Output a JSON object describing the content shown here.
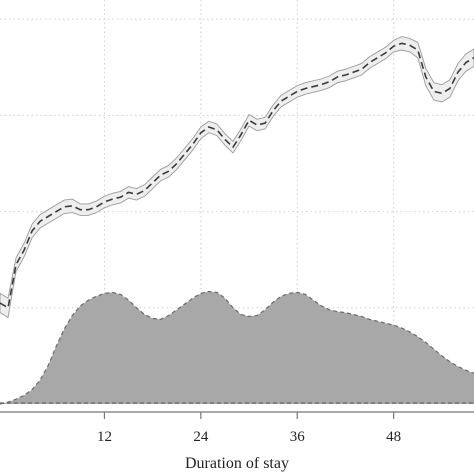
{
  "chart_data": {
    "type": "line",
    "title": "",
    "xlabel": "Duration of stay",
    "ylabel": "",
    "xlim": [
      -1,
      58
    ],
    "ylim": [
      0,
      4.2
    ],
    "grid": true,
    "x_ticks": [
      12,
      24,
      36,
      48
    ],
    "series": [
      {
        "style": "dashed line with shaded confidence band",
        "x": [
          -1,
          0,
          1,
          2,
          3,
          4,
          5,
          6,
          7,
          8,
          9,
          10,
          11,
          12,
          13,
          14,
          15,
          16,
          17,
          18,
          19,
          20,
          21,
          22,
          23,
          24,
          25,
          26,
          27,
          28,
          29,
          30,
          31,
          32,
          33,
          34,
          35,
          36,
          37,
          38,
          39,
          40,
          41,
          42,
          43,
          44,
          45,
          46,
          47,
          48,
          49,
          50,
          51,
          52,
          53,
          54,
          55,
          56,
          57,
          58
        ],
        "y": [
          1.05,
          1.0,
          1.45,
          1.6,
          1.8,
          1.9,
          1.95,
          2.0,
          2.05,
          2.06,
          2.02,
          2.02,
          2.05,
          2.1,
          2.13,
          2.15,
          2.2,
          2.18,
          2.22,
          2.3,
          2.38,
          2.42,
          2.5,
          2.6,
          2.7,
          2.82,
          2.88,
          2.85,
          2.75,
          2.67,
          2.8,
          2.95,
          2.9,
          2.92,
          3.05,
          3.15,
          3.2,
          3.25,
          3.28,
          3.3,
          3.32,
          3.35,
          3.4,
          3.42,
          3.45,
          3.48,
          3.55,
          3.6,
          3.65,
          3.72,
          3.75,
          3.73,
          3.68,
          3.4,
          3.25,
          3.23,
          3.28,
          3.45,
          3.55,
          3.6
        ],
        "lower": [
          0.95,
          0.9,
          1.38,
          1.53,
          1.73,
          1.83,
          1.88,
          1.93,
          1.98,
          1.99,
          1.96,
          1.96,
          1.99,
          2.04,
          2.07,
          2.09,
          2.14,
          2.12,
          2.16,
          2.24,
          2.32,
          2.36,
          2.44,
          2.54,
          2.64,
          2.76,
          2.82,
          2.79,
          2.69,
          2.61,
          2.74,
          2.89,
          2.84,
          2.86,
          2.99,
          3.09,
          3.14,
          3.19,
          3.22,
          3.24,
          3.26,
          3.29,
          3.34,
          3.36,
          3.39,
          3.42,
          3.49,
          3.54,
          3.59,
          3.66,
          3.68,
          3.66,
          3.6,
          3.31,
          3.16,
          3.14,
          3.19,
          3.36,
          3.46,
          3.51
        ],
        "upper": [
          1.15,
          1.1,
          1.52,
          1.67,
          1.87,
          1.97,
          2.02,
          2.07,
          2.12,
          2.13,
          2.08,
          2.08,
          2.11,
          2.16,
          2.19,
          2.21,
          2.26,
          2.24,
          2.28,
          2.36,
          2.44,
          2.48,
          2.56,
          2.66,
          2.76,
          2.88,
          2.94,
          2.91,
          2.81,
          2.73,
          2.86,
          3.01,
          2.96,
          2.98,
          3.11,
          3.21,
          3.26,
          3.31,
          3.34,
          3.36,
          3.38,
          3.41,
          3.46,
          3.48,
          3.51,
          3.54,
          3.61,
          3.66,
          3.71,
          3.78,
          3.82,
          3.8,
          3.76,
          3.49,
          3.34,
          3.32,
          3.37,
          3.54,
          3.64,
          3.69
        ]
      },
      {
        "style": "filled area (distribution)",
        "x": [
          -1,
          0,
          1,
          2,
          3,
          4,
          5,
          6,
          7,
          8,
          9,
          10,
          11,
          12,
          13,
          14,
          15,
          16,
          17,
          18,
          19,
          20,
          21,
          22,
          23,
          24,
          25,
          26,
          27,
          28,
          29,
          30,
          31,
          32,
          33,
          34,
          35,
          36,
          37,
          38,
          39,
          40,
          41,
          42,
          43,
          44,
          45,
          46,
          47,
          48,
          49,
          50,
          51,
          52,
          53,
          54,
          55,
          56,
          57,
          58
        ],
        "y": [
          0.0,
          0.02,
          0.05,
          0.09,
          0.15,
          0.25,
          0.4,
          0.6,
          0.78,
          0.92,
          1.02,
          1.08,
          1.12,
          1.15,
          1.16,
          1.14,
          1.08,
          1.0,
          0.93,
          0.89,
          0.88,
          0.92,
          0.98,
          1.04,
          1.1,
          1.15,
          1.17,
          1.16,
          1.1,
          1.0,
          0.93,
          0.91,
          0.92,
          0.98,
          1.06,
          1.12,
          1.15,
          1.16,
          1.14,
          1.08,
          1.02,
          0.98,
          0.96,
          0.95,
          0.93,
          0.91,
          0.88,
          0.86,
          0.84,
          0.82,
          0.79,
          0.75,
          0.7,
          0.64,
          0.57,
          0.5,
          0.44,
          0.39,
          0.35,
          0.32
        ]
      }
    ]
  },
  "colors": {
    "band_fill": "#eeeeee",
    "band_edge": "#9a9a9a",
    "line": "#3a3a3a",
    "area_fill": "#a8a8a8",
    "area_edge": "#6a6a6a",
    "grid": "#cfcfcf",
    "axis": "#777777"
  }
}
